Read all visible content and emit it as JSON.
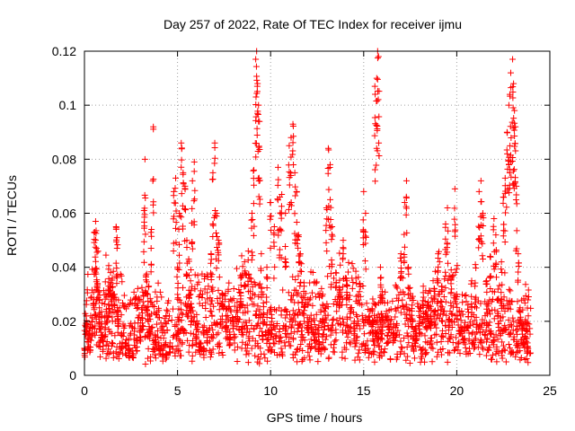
{
  "chart_data": {
    "type": "scatter",
    "title": "Day 257 of 2022, Rate Of TEC Index for receiver ijmu",
    "xlabel": "GPS time / hours",
    "ylabel": "ROTI / TECUs",
    "xlim": [
      0,
      25
    ],
    "ylim": [
      0,
      0.12
    ],
    "x_ticks": [
      0,
      5,
      10,
      15,
      20,
      25
    ],
    "x_tick_labels": [
      "0",
      "5",
      "10",
      "15",
      "20",
      "25"
    ],
    "y_ticks": [
      0,
      0.02,
      0.04,
      0.06,
      0.08,
      0.1,
      0.12
    ],
    "y_tick_labels": [
      "0",
      "0.02",
      "0.04",
      "0.06",
      "0.08",
      "0.1",
      "0.12"
    ],
    "grid": true,
    "marker": "+",
    "color": "#ff0000",
    "series": [
      {
        "points": [
          [
            0.0,
            0.01
          ],
          [
            0.1,
            0.022
          ],
          [
            0.2,
            0.015
          ],
          [
            0.3,
            0.013
          ],
          [
            0.4,
            0.02
          ],
          [
            0.5,
            0.028
          ],
          [
            0.55,
            0.053
          ],
          [
            0.6,
            0.057
          ],
          [
            0.65,
            0.047
          ],
          [
            0.7,
            0.034
          ],
          [
            0.8,
            0.025
          ],
          [
            0.9,
            0.018
          ],
          [
            1.0,
            0.014
          ],
          [
            1.1,
            0.022
          ],
          [
            1.2,
            0.029
          ],
          [
            1.3,
            0.033
          ],
          [
            1.4,
            0.038
          ],
          [
            1.5,
            0.036
          ],
          [
            1.6,
            0.03
          ],
          [
            1.7,
            0.055
          ],
          [
            1.75,
            0.051
          ],
          [
            1.8,
            0.024
          ],
          [
            2.0,
            0.015
          ],
          [
            2.2,
            0.012
          ],
          [
            2.4,
            0.01
          ],
          [
            2.6,
            0.009
          ],
          [
            2.8,
            0.013
          ],
          [
            3.0,
            0.018
          ],
          [
            3.1,
            0.025
          ],
          [
            3.2,
            0.061
          ],
          [
            3.25,
            0.08
          ],
          [
            3.3,
            0.037
          ],
          [
            3.4,
            0.03
          ],
          [
            3.5,
            0.022
          ],
          [
            3.6,
            0.054
          ],
          [
            3.7,
            0.092
          ],
          [
            3.8,
            0.015
          ],
          [
            4.0,
            0.012
          ],
          [
            4.2,
            0.01
          ],
          [
            4.4,
            0.008
          ],
          [
            4.6,
            0.012
          ],
          [
            4.8,
            0.068
          ],
          [
            4.9,
            0.073
          ],
          [
            5.0,
            0.04
          ],
          [
            5.1,
            0.06
          ],
          [
            5.2,
            0.086
          ],
          [
            5.3,
            0.075
          ],
          [
            5.4,
            0.07
          ],
          [
            5.5,
            0.05
          ],
          [
            5.6,
            0.043
          ],
          [
            5.7,
            0.035
          ],
          [
            5.8,
            0.072
          ],
          [
            5.9,
            0.079
          ],
          [
            6.0,
            0.015
          ],
          [
            6.2,
            0.012
          ],
          [
            6.4,
            0.01
          ],
          [
            6.6,
            0.016
          ],
          [
            6.8,
            0.045
          ],
          [
            6.9,
            0.075
          ],
          [
            7.0,
            0.086
          ],
          [
            7.1,
            0.06
          ],
          [
            7.2,
            0.05
          ],
          [
            7.4,
            0.03
          ],
          [
            7.6,
            0.022
          ],
          [
            7.8,
            0.016
          ],
          [
            8.0,
            0.02
          ],
          [
            8.2,
            0.027
          ],
          [
            8.4,
            0.036
          ],
          [
            8.6,
            0.042
          ],
          [
            8.8,
            0.046
          ],
          [
            9.0,
            0.06
          ],
          [
            9.1,
            0.076
          ],
          [
            9.2,
            0.117
          ],
          [
            9.25,
            0.12
          ],
          [
            9.3,
            0.108
          ],
          [
            9.35,
            0.1
          ],
          [
            9.4,
            0.094
          ],
          [
            9.5,
            0.045
          ],
          [
            9.6,
            0.03
          ],
          [
            9.8,
            0.04
          ],
          [
            10.0,
            0.064
          ],
          [
            10.2,
            0.055
          ],
          [
            10.4,
            0.077
          ],
          [
            10.5,
            0.066
          ],
          [
            10.6,
            0.067
          ],
          [
            10.8,
            0.06
          ],
          [
            11.0,
            0.085
          ],
          [
            11.1,
            0.088
          ],
          [
            11.2,
            0.093
          ],
          [
            11.3,
            0.075
          ],
          [
            11.4,
            0.068
          ],
          [
            11.5,
            0.052
          ],
          [
            11.6,
            0.045
          ],
          [
            11.8,
            0.033
          ],
          [
            12.0,
            0.026
          ],
          [
            12.2,
            0.02
          ],
          [
            12.4,
            0.015
          ],
          [
            12.6,
            0.012
          ],
          [
            12.8,
            0.03
          ],
          [
            13.0,
            0.062
          ],
          [
            13.1,
            0.084
          ],
          [
            13.2,
            0.078
          ],
          [
            13.3,
            0.055
          ],
          [
            13.5,
            0.038
          ],
          [
            13.7,
            0.03
          ],
          [
            13.9,
            0.05
          ],
          [
            14.1,
            0.035
          ],
          [
            14.3,
            0.025
          ],
          [
            14.5,
            0.02
          ],
          [
            14.8,
            0.034
          ],
          [
            15.0,
            0.068
          ],
          [
            15.1,
            0.06
          ],
          [
            15.3,
            0.022
          ],
          [
            15.5,
            0.019
          ],
          [
            15.6,
            0.107
          ],
          [
            15.7,
            0.11
          ],
          [
            15.75,
            0.12
          ],
          [
            15.8,
            0.118
          ],
          [
            15.9,
            0.04
          ],
          [
            16.0,
            0.031
          ],
          [
            16.3,
            0.022
          ],
          [
            16.6,
            0.018
          ],
          [
            17.0,
            0.045
          ],
          [
            17.2,
            0.064
          ],
          [
            17.3,
            0.072
          ],
          [
            17.4,
            0.04
          ],
          [
            17.6,
            0.026
          ],
          [
            17.8,
            0.018
          ],
          [
            18.0,
            0.02
          ],
          [
            18.2,
            0.033
          ],
          [
            18.4,
            0.026
          ],
          [
            18.6,
            0.022
          ],
          [
            18.8,
            0.032
          ],
          [
            19.0,
            0.045
          ],
          [
            19.2,
            0.033
          ],
          [
            19.4,
            0.056
          ],
          [
            19.5,
            0.062
          ],
          [
            19.7,
            0.039
          ],
          [
            19.9,
            0.069
          ],
          [
            20.0,
            0.03
          ],
          [
            20.2,
            0.022
          ],
          [
            20.4,
            0.018
          ],
          [
            20.6,
            0.026
          ],
          [
            20.8,
            0.035
          ],
          [
            21.0,
            0.041
          ],
          [
            21.2,
            0.068
          ],
          [
            21.3,
            0.072
          ],
          [
            21.4,
            0.06
          ],
          [
            21.6,
            0.035
          ],
          [
            21.8,
            0.044
          ],
          [
            22.0,
            0.058
          ],
          [
            22.1,
            0.052
          ],
          [
            22.2,
            0.028
          ],
          [
            22.4,
            0.042
          ],
          [
            22.5,
            0.066
          ],
          [
            22.6,
            0.073
          ],
          [
            22.7,
            0.09
          ],
          [
            22.8,
            0.1
          ],
          [
            22.85,
            0.104
          ],
          [
            22.9,
            0.112
          ],
          [
            23.0,
            0.117
          ],
          [
            23.05,
            0.108
          ],
          [
            23.1,
            0.098
          ],
          [
            23.15,
            0.092
          ],
          [
            23.2,
            0.07
          ],
          [
            23.3,
            0.045
          ],
          [
            23.4,
            0.025
          ],
          [
            23.5,
            0.02
          ],
          [
            23.6,
            0.014
          ],
          [
            23.8,
            0.012
          ]
        ],
        "band": {
          "lo": 0.004,
          "mid": 0.018,
          "hi": 0.04,
          "per_hour": 70
        }
      }
    ]
  }
}
